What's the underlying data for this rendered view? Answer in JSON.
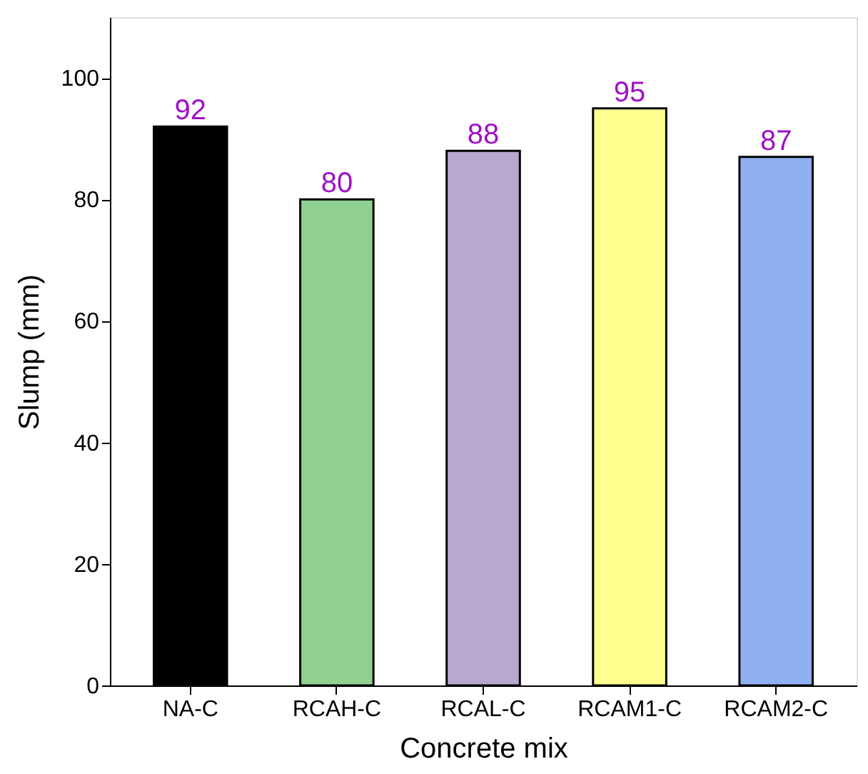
{
  "chart_data": {
    "type": "bar",
    "xlabel": "Concrete mix",
    "ylabel": "Slump (mm)",
    "categories": [
      "NA-C",
      "RCAH-C",
      "RCAL-C",
      "RCAM1-C",
      "RCAM2-C"
    ],
    "values": [
      92,
      80,
      88,
      95,
      87
    ],
    "colors": [
      "#000000",
      "#90d090",
      "#b8a8d0",
      "#ffff90",
      "#90b0f0"
    ],
    "ylim": [
      0,
      110
    ],
    "yticks": [
      0,
      20,
      40,
      60,
      80,
      100
    ],
    "grid": false,
    "legend": false,
    "data_labels": true
  }
}
